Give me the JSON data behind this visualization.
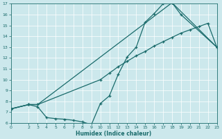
{
  "xlabel": "Humidex (Indice chaleur)",
  "bg_color": "#cce8ec",
  "line_color": "#1a6b6b",
  "grid_color": "#b0d8dc",
  "xlim": [
    0,
    23
  ],
  "ylim": [
    6,
    17
  ],
  "xticks": [
    0,
    2,
    3,
    4,
    5,
    6,
    7,
    8,
    9,
    10,
    11,
    12,
    13,
    14,
    15,
    16,
    17,
    18,
    19,
    20,
    21,
    22,
    23
  ],
  "yticks": [
    6,
    7,
    8,
    9,
    10,
    11,
    12,
    13,
    14,
    15,
    16,
    17
  ],
  "line1_x": [
    0,
    2,
    3,
    18,
    19,
    23
  ],
  "line1_y": [
    7.3,
    7.7,
    7.7,
    17.1,
    16.0,
    13.0
  ],
  "line2_x": [
    0,
    2,
    3,
    4,
    5,
    6,
    7,
    8,
    9,
    10,
    11,
    12,
    13,
    14,
    15,
    16,
    17,
    18,
    23
  ],
  "line2_y": [
    7.3,
    7.7,
    7.5,
    6.5,
    6.4,
    6.35,
    6.25,
    6.1,
    5.85,
    7.8,
    8.5,
    10.5,
    12.1,
    13.0,
    15.3,
    16.1,
    17.0,
    17.1,
    13.0
  ],
  "line3_x": [
    0,
    2,
    3,
    10,
    11,
    12,
    13,
    14,
    15,
    16,
    17,
    18,
    19,
    20,
    21,
    22,
    23
  ],
  "line3_y": [
    7.3,
    7.7,
    7.7,
    10.0,
    10.6,
    11.2,
    11.7,
    12.2,
    12.6,
    13.1,
    13.5,
    13.9,
    14.3,
    14.6,
    14.9,
    15.2,
    13.0
  ]
}
